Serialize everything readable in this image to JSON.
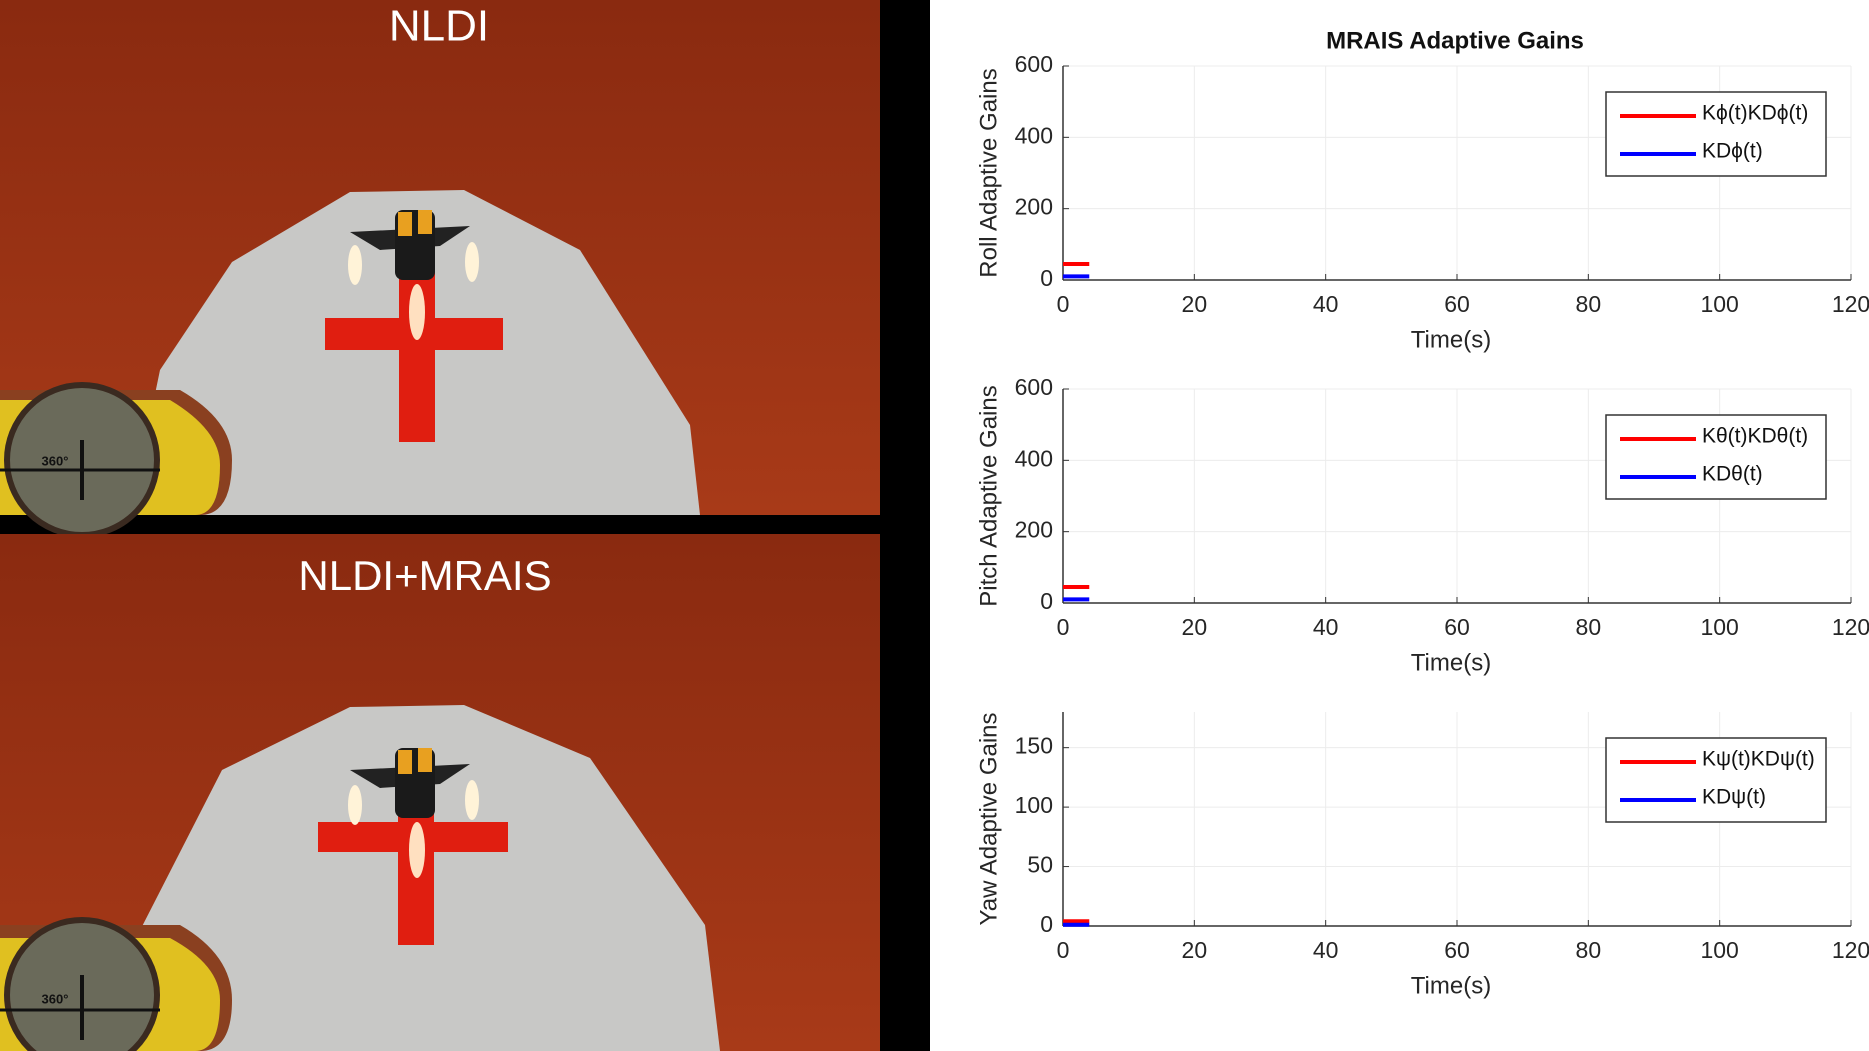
{
  "panels": [
    {
      "label": "NLDI",
      "gauge": "360°"
    },
    {
      "label": "NLDI+MRAIS",
      "gauge": "360°"
    }
  ],
  "chart_data": [
    {
      "type": "line",
      "title": "MRAIS Adaptive Gains",
      "xlabel": "Time(s)",
      "ylabel": "Roll Adaptive Gains",
      "xlim": [
        0,
        120
      ],
      "ylim": [
        0,
        600
      ],
      "xticks": [
        0,
        20,
        40,
        60,
        80,
        100,
        120
      ],
      "yticks": [
        0,
        200,
        400,
        600
      ],
      "grid": true,
      "legend": "upper right",
      "x": [
        0,
        4
      ],
      "series": [
        {
          "name": "Kϕ(t)KDϕ(t)",
          "color": "#ff0000",
          "values": [
            45,
            45
          ]
        },
        {
          "name": "KDϕ(t)",
          "color": "#0000ff",
          "values": [
            10,
            10
          ]
        }
      ]
    },
    {
      "type": "line",
      "xlabel": "Time(s)",
      "ylabel": "Pitch Adaptive Gains",
      "xlim": [
        0,
        120
      ],
      "ylim": [
        0,
        600
      ],
      "xticks": [
        0,
        20,
        40,
        60,
        80,
        100,
        120
      ],
      "yticks": [
        0,
        200,
        400,
        600
      ],
      "grid": true,
      "legend": "upper right",
      "x": [
        0,
        4
      ],
      "series": [
        {
          "name": "Kθ(t)KDθ(t)",
          "color": "#ff0000",
          "values": [
            45,
            45
          ]
        },
        {
          "name": "KDθ(t)",
          "color": "#0000ff",
          "values": [
            10,
            10
          ]
        }
      ]
    },
    {
      "type": "line",
      "xlabel": "Time(s)",
      "ylabel": "Yaw Adaptive Gains",
      "xlim": [
        0,
        120
      ],
      "ylim": [
        0,
        180
      ],
      "xticks": [
        0,
        20,
        40,
        60,
        80,
        100,
        120
      ],
      "yticks": [
        0,
        50,
        100,
        150
      ],
      "grid": true,
      "legend": "upper right",
      "x": [
        0,
        4
      ],
      "series": [
        {
          "name": "Kψ(t)KDψ(t)",
          "color": "#ff0000",
          "values": [
            4,
            4
          ]
        },
        {
          "name": "KDψ(t)",
          "color": "#0000ff",
          "values": [
            1,
            1
          ]
        }
      ]
    }
  ]
}
